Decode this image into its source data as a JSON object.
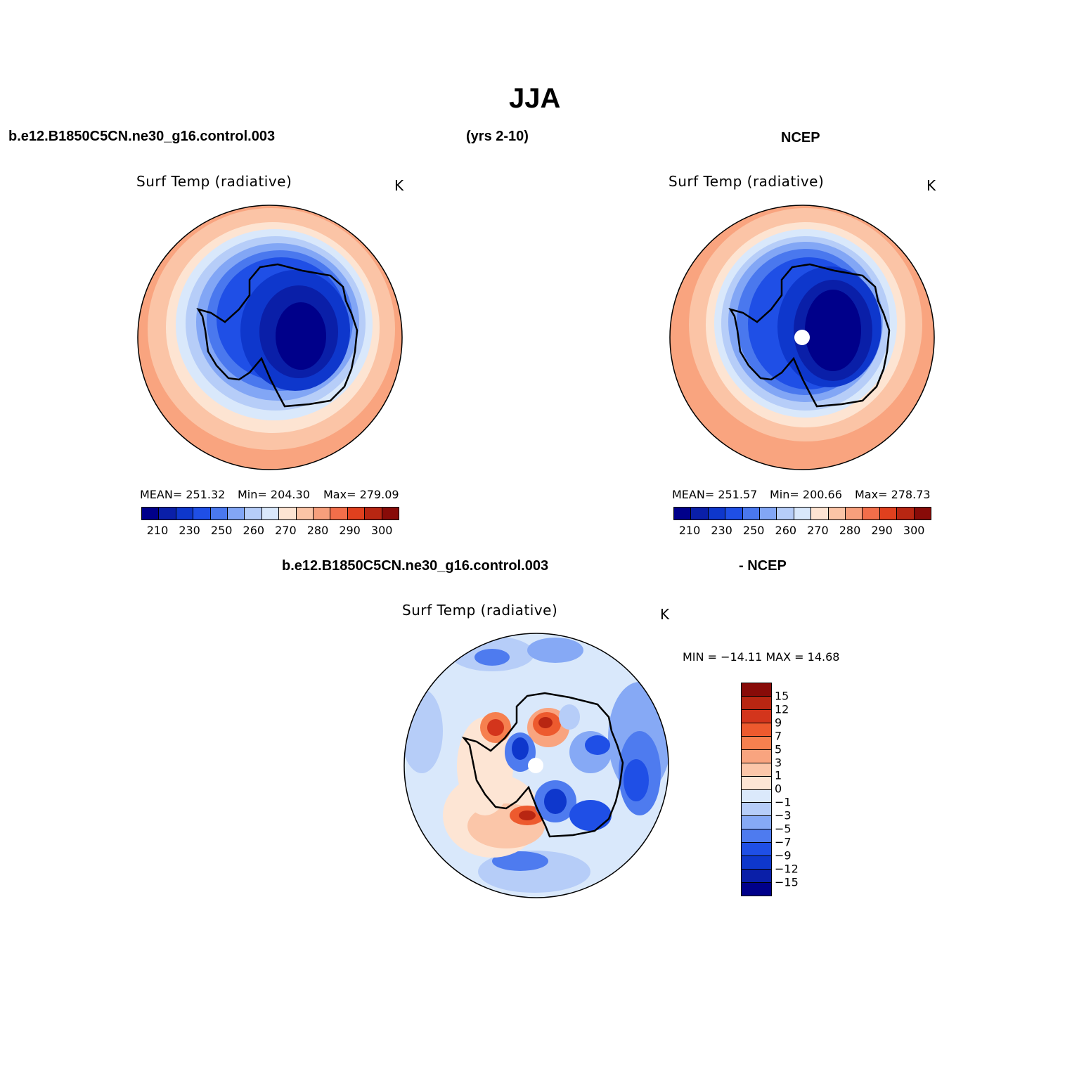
{
  "title": "JJA",
  "header": {
    "case_name": "b.e12.B1850C5CN.ne30_g16.control.003",
    "years": "(yrs 2-10)",
    "obs_name": "NCEP"
  },
  "panels": {
    "model": {
      "title": "Surf Temp (radiative)",
      "units": "K",
      "stats": {
        "mean": "MEAN= 251.32",
        "min": "Min= 204.30",
        "max": "Max= 279.09"
      }
    },
    "obs": {
      "title": "Surf Temp (radiative)",
      "units": "K",
      "stats": {
        "mean": "MEAN= 251.57",
        "min": "Min= 200.66",
        "max": "Max= 278.73"
      }
    },
    "diff": {
      "header_left": "b.e12.B1850C5CN.ne30_g16.control.003",
      "header_right": "- NCEP",
      "title": "Surf Temp (radiative)",
      "units": "K",
      "minmax": "MIN = −14.11 MAX =   14.68"
    }
  },
  "colorbar_abs": {
    "colors": [
      "#00008a",
      "#0a1fa8",
      "#0e37cc",
      "#1f4fe6",
      "#4a78ee",
      "#82a6f5",
      "#b6cdf8",
      "#d9e8fb",
      "#fde4d2",
      "#fbc4a6",
      "#f79f7c",
      "#f26e4a",
      "#e0401e",
      "#b82612",
      "#880b08"
    ],
    "tick_labels": [
      "210",
      "230",
      "250",
      "260",
      "270",
      "280",
      "290",
      "300"
    ]
  },
  "colorbar_diff": {
    "colors": [
      "#880b08",
      "#b82612",
      "#d3351c",
      "#ed5a2e",
      "#f6804f",
      "#f9a47f",
      "#fbc6a9",
      "#fde5d4",
      "#dbe9fb",
      "#b6cdf8",
      "#86a9f5",
      "#4e7bef",
      "#1f4fe6",
      "#0e37cc",
      "#0a1fa8",
      "#00008a"
    ],
    "tick_labels": [
      "15",
      "12",
      "9",
      "7",
      "5",
      "3",
      "1",
      "0",
      "−1",
      "−3",
      "−5",
      "−7",
      "−9",
      "−12",
      "−15"
    ]
  }
}
